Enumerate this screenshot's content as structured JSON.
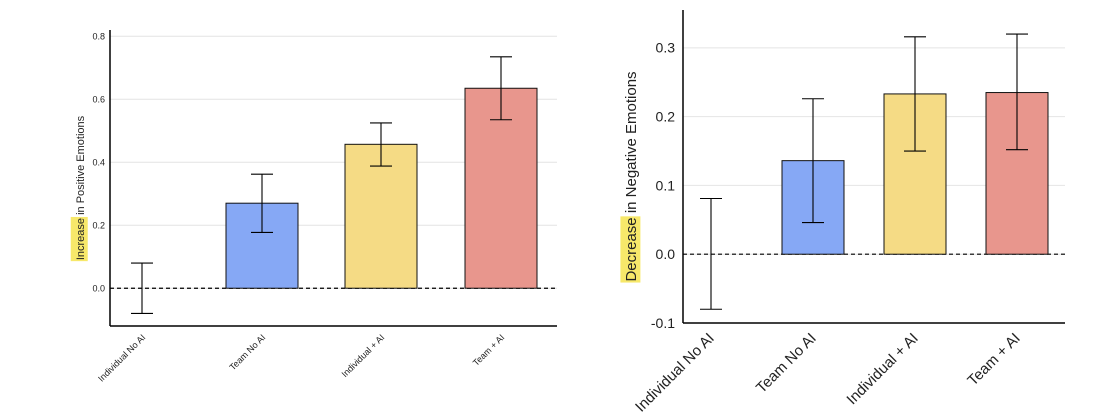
{
  "colors": {
    "team_no_ai": "#86a8f5",
    "individual_ai": "#f5db85",
    "team_ai": "#e8968d",
    "highlight": "#f7e86a",
    "axis": "#000000",
    "grid": "#e4e4e4"
  },
  "chart_data": [
    {
      "type": "bar",
      "ylabel_highlight": "Increase",
      "ylabel_rest": " in Positive Emotions",
      "categories": [
        "Individual No AI",
        "Team No AI",
        "Individual + AI",
        "Team + AI"
      ],
      "values": [
        0.0,
        0.27,
        0.457,
        0.635
      ],
      "ci_low": [
        -0.08,
        0.177,
        0.388,
        0.535
      ],
      "ci_high": [
        0.08,
        0.362,
        0.525,
        0.735
      ],
      "bar_visible": [
        false,
        true,
        true,
        true
      ],
      "ylim": [
        -0.12,
        0.82
      ],
      "yticks": [
        0.0,
        0.2,
        0.4,
        0.6,
        0.8
      ],
      "ytick_labels": [
        "0.0",
        "0.2",
        "0.4",
        "0.6",
        "0.8"
      ],
      "reference_line": 0.0,
      "grid": true
    },
    {
      "type": "bar",
      "ylabel_highlight": "Decrease",
      "ylabel_rest": " in Negative Emotions",
      "categories": [
        "Individual No AI",
        "Team No AI",
        "Individual + AI",
        "Team + AI"
      ],
      "values": [
        0.0,
        0.136,
        0.233,
        0.235
      ],
      "ci_low": [
        -0.08,
        0.046,
        0.15,
        0.152
      ],
      "ci_high": [
        0.081,
        0.226,
        0.316,
        0.32
      ],
      "bar_visible": [
        false,
        true,
        true,
        true
      ],
      "ylim": [
        -0.1,
        0.355
      ],
      "yticks": [
        -0.1,
        0.0,
        0.1,
        0.2,
        0.3
      ],
      "ytick_labels": [
        "-0.1",
        "0.0",
        "0.1",
        "0.2",
        "0.3"
      ],
      "reference_line": 0.0,
      "grid": true
    }
  ]
}
